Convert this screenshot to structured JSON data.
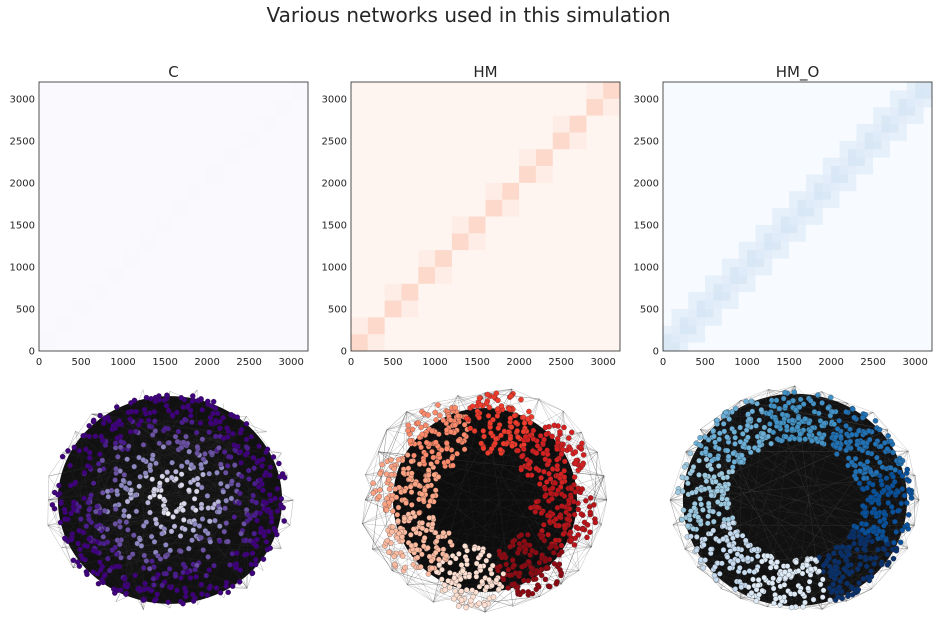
{
  "title": "Various networks used in this simulation",
  "chart_data": [
    {
      "type": "heatmap",
      "name": "C",
      "title": "C",
      "cmap": "Purples",
      "n_nodes": 3200,
      "block_size": 200,
      "n_blocks": 16,
      "structure": "uniform",
      "xlim": [
        0,
        3200
      ],
      "ylim": [
        0,
        3200
      ],
      "xticks": [
        0,
        500,
        1000,
        1500,
        2000,
        2500,
        3000
      ],
      "yticks": [
        0,
        500,
        1000,
        1500,
        2000,
        2500,
        3000
      ],
      "colors": {
        "bg": "#fafafe",
        "block": "#f6f5fb"
      }
    },
    {
      "type": "heatmap",
      "name": "HM",
      "title": "HM",
      "cmap": "Reds",
      "n_nodes": 3200,
      "block_size": 200,
      "n_blocks": 16,
      "structure": "block-diagonal",
      "xlim": [
        0,
        3200
      ],
      "ylim": [
        0,
        3200
      ],
      "xticks": [
        0,
        500,
        1000,
        1500,
        2000,
        2500,
        3000
      ],
      "yticks": [
        0,
        500,
        1000,
        1500,
        2000,
        2500,
        3000
      ],
      "colors": {
        "bg": "#fff5f0",
        "block": "#fcd9cb",
        "faint": "#feede6"
      }
    },
    {
      "type": "heatmap",
      "name": "HM_O",
      "title": "HM_O",
      "cmap": "Blues",
      "n_nodes": 3200,
      "block_size": 200,
      "n_blocks": 16,
      "structure": "overlapping-block-diagonal",
      "xlim": [
        0,
        3200
      ],
      "ylim": [
        0,
        3200
      ],
      "xticks": [
        0,
        500,
        1000,
        1500,
        2000,
        2500,
        3000
      ],
      "yticks": [
        0,
        500,
        1000,
        1500,
        2000,
        2500,
        3000
      ],
      "colors": {
        "bg": "#f7fbff",
        "block": "#e0ecf8",
        "strong": "#d2e3f4"
      }
    }
  ],
  "network_graphs": [
    {
      "name": "C",
      "layout": "disc",
      "palette": [
        "#f2eff7",
        "#d8d7ea",
        "#b7b5d9",
        "#8d88c1",
        "#6a51a3",
        "#4b1d8f",
        "#3f007d"
      ]
    },
    {
      "name": "HM",
      "layout": "clusters",
      "palette": [
        "#fc8a6a",
        "#ef3b2c",
        "#d42020",
        "#b81419",
        "#8e0a13",
        "#fee0d2",
        "#fcbba1",
        "#fca384"
      ]
    },
    {
      "name": "HM_O",
      "layout": "ring",
      "palette": [
        "#08306b",
        "#08519c",
        "#2171b5",
        "#4292c6",
        "#6baed6",
        "#9ecae1",
        "#c6dbef",
        "#deebf7"
      ]
    }
  ]
}
